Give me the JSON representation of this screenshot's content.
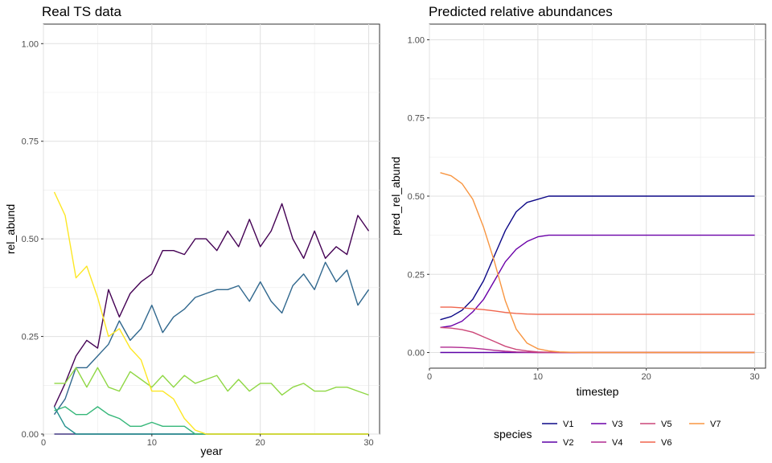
{
  "chart_data": [
    {
      "type": "line",
      "title": "Real TS data",
      "xlabel": "year",
      "ylabel": "rel_abund",
      "xlim": [
        0,
        31
      ],
      "ylim": [
        0,
        1.05
      ],
      "xticks": [
        "0",
        "10",
        "20",
        "30"
      ],
      "yticks": [
        "0.00",
        "0.25",
        "0.50",
        "0.75",
        "1.00"
      ],
      "x": [
        1,
        2,
        3,
        4,
        5,
        6,
        7,
        8,
        9,
        10,
        11,
        12,
        13,
        14,
        15,
        16,
        17,
        18,
        19,
        20,
        21,
        22,
        23,
        24,
        25,
        26,
        27,
        28,
        29,
        30
      ],
      "legend": "none",
      "grid": true,
      "series": [
        {
          "color": "#440154",
          "values": [
            0.07,
            0.13,
            0.2,
            0.24,
            0.22,
            0.37,
            0.3,
            0.36,
            0.39,
            0.41,
            0.47,
            0.47,
            0.46,
            0.5,
            0.5,
            0.47,
            0.52,
            0.48,
            0.55,
            0.48,
            0.52,
            0.59,
            0.5,
            0.45,
            0.52,
            0.45,
            0.48,
            0.46,
            0.56,
            0.52
          ]
        },
        {
          "color": "#31688e",
          "values": [
            0.05,
            0.09,
            0.17,
            0.17,
            0.2,
            0.23,
            0.29,
            0.24,
            0.27,
            0.33,
            0.26,
            0.3,
            0.32,
            0.35,
            0.36,
            0.37,
            0.37,
            0.38,
            0.34,
            0.39,
            0.34,
            0.31,
            0.38,
            0.41,
            0.37,
            0.44,
            0.39,
            0.42,
            0.33,
            0.37
          ]
        },
        {
          "color": "#443a83",
          "values": [
            0.0,
            0.0,
            0.0,
            0.0,
            0.0,
            0.0,
            0.0,
            0.0,
            0.0,
            0.0,
            0.0,
            0.0,
            0.0,
            0.0,
            0.0,
            0.0,
            0.0,
            0.0,
            0.0,
            0.0,
            0.0,
            0.0,
            0.0,
            0.0,
            0.0,
            0.0,
            0.0,
            0.0,
            0.0,
            0.0
          ]
        },
        {
          "color": "#21908c",
          "values": [
            0.07,
            0.02,
            0.0,
            0.0,
            0.0,
            0.0,
            0.0,
            0.0,
            0.0,
            0.0,
            0.0,
            0.0,
            0.0,
            0.0,
            0.0,
            0.0,
            0.0,
            0.0,
            0.0,
            0.0,
            0.0,
            0.0,
            0.0,
            0.0,
            0.0,
            0.0,
            0.0,
            0.0,
            0.0,
            0.0
          ]
        },
        {
          "color": "#35b779",
          "values": [
            0.06,
            0.07,
            0.05,
            0.05,
            0.07,
            0.05,
            0.04,
            0.02,
            0.02,
            0.03,
            0.02,
            0.02,
            0.02,
            0.0,
            0.0,
            0.0,
            0.0,
            0.0,
            0.0,
            0.0,
            0.0,
            0.0,
            0.0,
            0.0,
            0.0,
            0.0,
            0.0,
            0.0,
            0.0,
            0.0
          ]
        },
        {
          "color": "#8fd744",
          "values": [
            0.13,
            0.13,
            0.17,
            0.12,
            0.17,
            0.12,
            0.11,
            0.16,
            0.14,
            0.12,
            0.15,
            0.12,
            0.15,
            0.13,
            0.14,
            0.15,
            0.11,
            0.14,
            0.11,
            0.13,
            0.13,
            0.1,
            0.12,
            0.13,
            0.11,
            0.11,
            0.12,
            0.12,
            0.11,
            0.1
          ]
        },
        {
          "color": "#fde725",
          "values": [
            0.62,
            0.56,
            0.4,
            0.43,
            0.35,
            0.25,
            0.27,
            0.22,
            0.19,
            0.11,
            0.11,
            0.09,
            0.04,
            0.01,
            0.0,
            0.0,
            0.0,
            0.0,
            0.0,
            0.0,
            0.0,
            0.0,
            0.0,
            0.0,
            0.0,
            0.0,
            0.0,
            0.0,
            0.0,
            0.0
          ]
        }
      ]
    },
    {
      "type": "line",
      "title": "Predicted relative abundances",
      "xlabel": "timestep",
      "ylabel": "pred_rel_abund",
      "xlim": [
        0,
        31
      ],
      "ylim": [
        -0.05,
        1.05
      ],
      "xticks": [
        "0",
        "10",
        "20",
        "30"
      ],
      "yticks": [
        "0.00",
        "0.25",
        "0.50",
        "0.75",
        "1.00"
      ],
      "x": [
        1,
        2,
        3,
        4,
        5,
        6,
        7,
        8,
        9,
        10,
        11,
        12,
        13,
        14,
        15,
        16,
        17,
        18,
        19,
        20,
        21,
        22,
        23,
        24,
        25,
        26,
        27,
        28,
        29,
        30
      ],
      "legend": "bottom",
      "legend_title": "species",
      "grid": true,
      "series": [
        {
          "name": "V1",
          "color": "#0d0887",
          "values": [
            0.105,
            0.115,
            0.135,
            0.17,
            0.23,
            0.31,
            0.39,
            0.45,
            0.48,
            0.49,
            0.5,
            0.5,
            0.5,
            0.5,
            0.5,
            0.5,
            0.5,
            0.5,
            0.5,
            0.5,
            0.5,
            0.5,
            0.5,
            0.5,
            0.5,
            0.5,
            0.5,
            0.5,
            0.5,
            0.5
          ]
        },
        {
          "name": "V2",
          "color": "#5c01a6",
          "values": [
            0.0,
            0.0,
            0.0,
            0.0,
            0.0,
            0.0,
            0.0,
            0.0,
            0.0,
            0.0,
            0.0,
            0.0,
            0.0,
            0.0,
            0.0,
            0.0,
            0.0,
            0.0,
            0.0,
            0.0,
            0.0,
            0.0,
            0.0,
            0.0,
            0.0,
            0.0,
            0.0,
            0.0,
            0.0,
            0.0
          ]
        },
        {
          "name": "V3",
          "color": "#6a00a8",
          "values": [
            0.08,
            0.085,
            0.1,
            0.13,
            0.17,
            0.23,
            0.29,
            0.33,
            0.355,
            0.37,
            0.375,
            0.375,
            0.375,
            0.375,
            0.375,
            0.375,
            0.375,
            0.375,
            0.375,
            0.375,
            0.375,
            0.375,
            0.375,
            0.375,
            0.375,
            0.375,
            0.375,
            0.375,
            0.375,
            0.375
          ]
        },
        {
          "name": "V4",
          "color": "#b12a90",
          "values": [
            0.017,
            0.017,
            0.016,
            0.014,
            0.011,
            0.007,
            0.004,
            0.002,
            0.001,
            0.0,
            0.0,
            0.0,
            0.0,
            0.0,
            0.0,
            0.0,
            0.0,
            0.0,
            0.0,
            0.0,
            0.0,
            0.0,
            0.0,
            0.0,
            0.0,
            0.0,
            0.0,
            0.0,
            0.0,
            0.0
          ]
        },
        {
          "name": "V5",
          "color": "#cc4778",
          "values": [
            0.08,
            0.078,
            0.073,
            0.065,
            0.05,
            0.035,
            0.02,
            0.01,
            0.005,
            0.002,
            0.001,
            0.0,
            0.0,
            0.0,
            0.0,
            0.0,
            0.0,
            0.0,
            0.0,
            0.0,
            0.0,
            0.0,
            0.0,
            0.0,
            0.0,
            0.0,
            0.0,
            0.0,
            0.0,
            0.0
          ]
        },
        {
          "name": "V6",
          "color": "#f0654d",
          "values": [
            0.145,
            0.145,
            0.143,
            0.14,
            0.137,
            0.133,
            0.128,
            0.125,
            0.123,
            0.122,
            0.122,
            0.122,
            0.122,
            0.122,
            0.122,
            0.122,
            0.122,
            0.122,
            0.122,
            0.122,
            0.122,
            0.122,
            0.122,
            0.122,
            0.122,
            0.122,
            0.122,
            0.122,
            0.122,
            0.122
          ]
        },
        {
          "name": "V7",
          "color": "#f89540",
          "values": [
            0.575,
            0.565,
            0.54,
            0.49,
            0.4,
            0.29,
            0.165,
            0.075,
            0.03,
            0.012,
            0.005,
            0.002,
            0.001,
            0.0,
            0.0,
            0.0,
            0.0,
            0.0,
            0.0,
            0.0,
            0.0,
            0.0,
            0.0,
            0.0,
            0.0,
            0.0,
            0.0,
            0.0,
            0.0,
            0.0
          ]
        }
      ]
    }
  ]
}
